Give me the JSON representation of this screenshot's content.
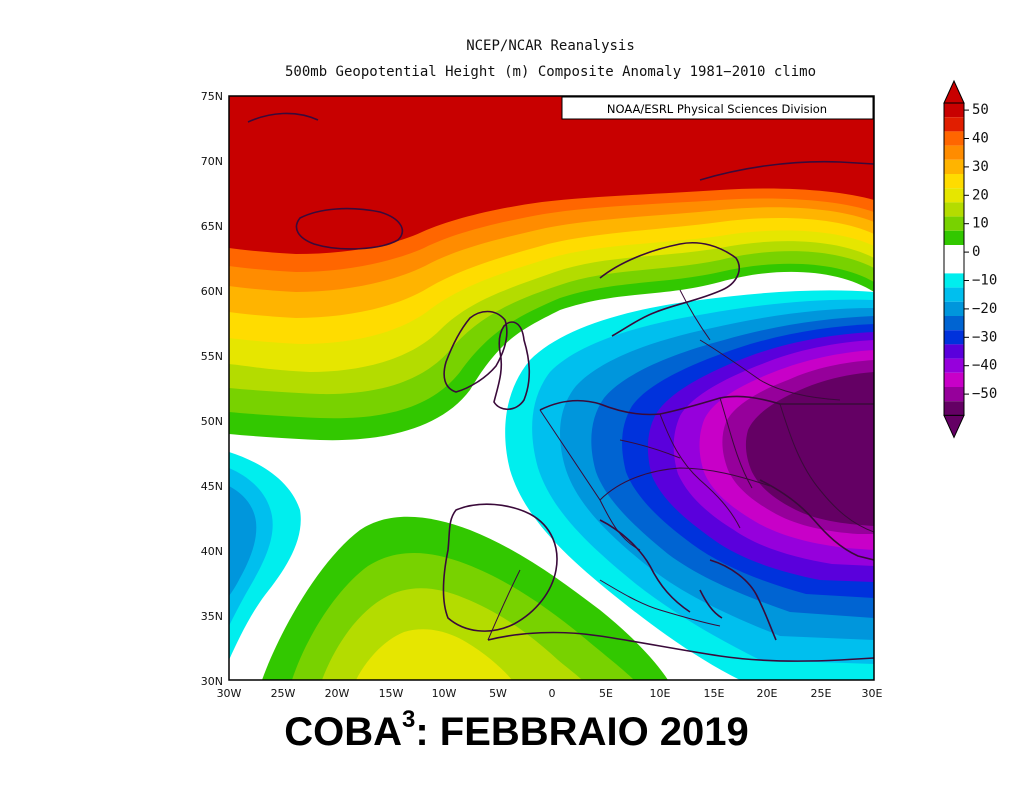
{
  "title": {
    "line1": "NCEP/NCAR Reanalysis",
    "line2": "500mb Geopotential Height (m) Composite Anomaly 1981−2010 climo"
  },
  "credit": "NOAA/ESRL Physical Sciences Division",
  "map": {
    "lat_labels": [
      "75N",
      "70N",
      "65N",
      "60N",
      "55N",
      "50N",
      "45N",
      "40N",
      "35N",
      "30N"
    ],
    "lon_labels": [
      "30W",
      "25W",
      "20W",
      "15W",
      "10W",
      "5W",
      "0",
      "5E",
      "10E",
      "15E",
      "20E",
      "25E",
      "30E"
    ],
    "lat_range": [
      30,
      75
    ],
    "lon_range": [
      -30,
      30
    ]
  },
  "colorbar": {
    "labels": [
      "50",
      "40",
      "30",
      "20",
      "10",
      "0",
      "−10",
      "−20",
      "−30",
      "−40",
      "−50"
    ],
    "colors": [
      "#c80000",
      "#e11e00",
      "#ff6600",
      "#ff8c00",
      "#ffb400",
      "#ffdc00",
      "#e6e600",
      "#b4dc00",
      "#78d200",
      "#32c800",
      "#ffffff",
      "#ffffff",
      "#00eeee",
      "#00bfee",
      "#0096dc",
      "#0064d2",
      "#0032dc",
      "#5a00dc",
      "#9600dc",
      "#c800c8",
      "#96009b",
      "#640064"
    ]
  },
  "caption": {
    "main": "COBA",
    "sup": "3",
    "rest": ": FEBBRAIO 2019"
  }
}
